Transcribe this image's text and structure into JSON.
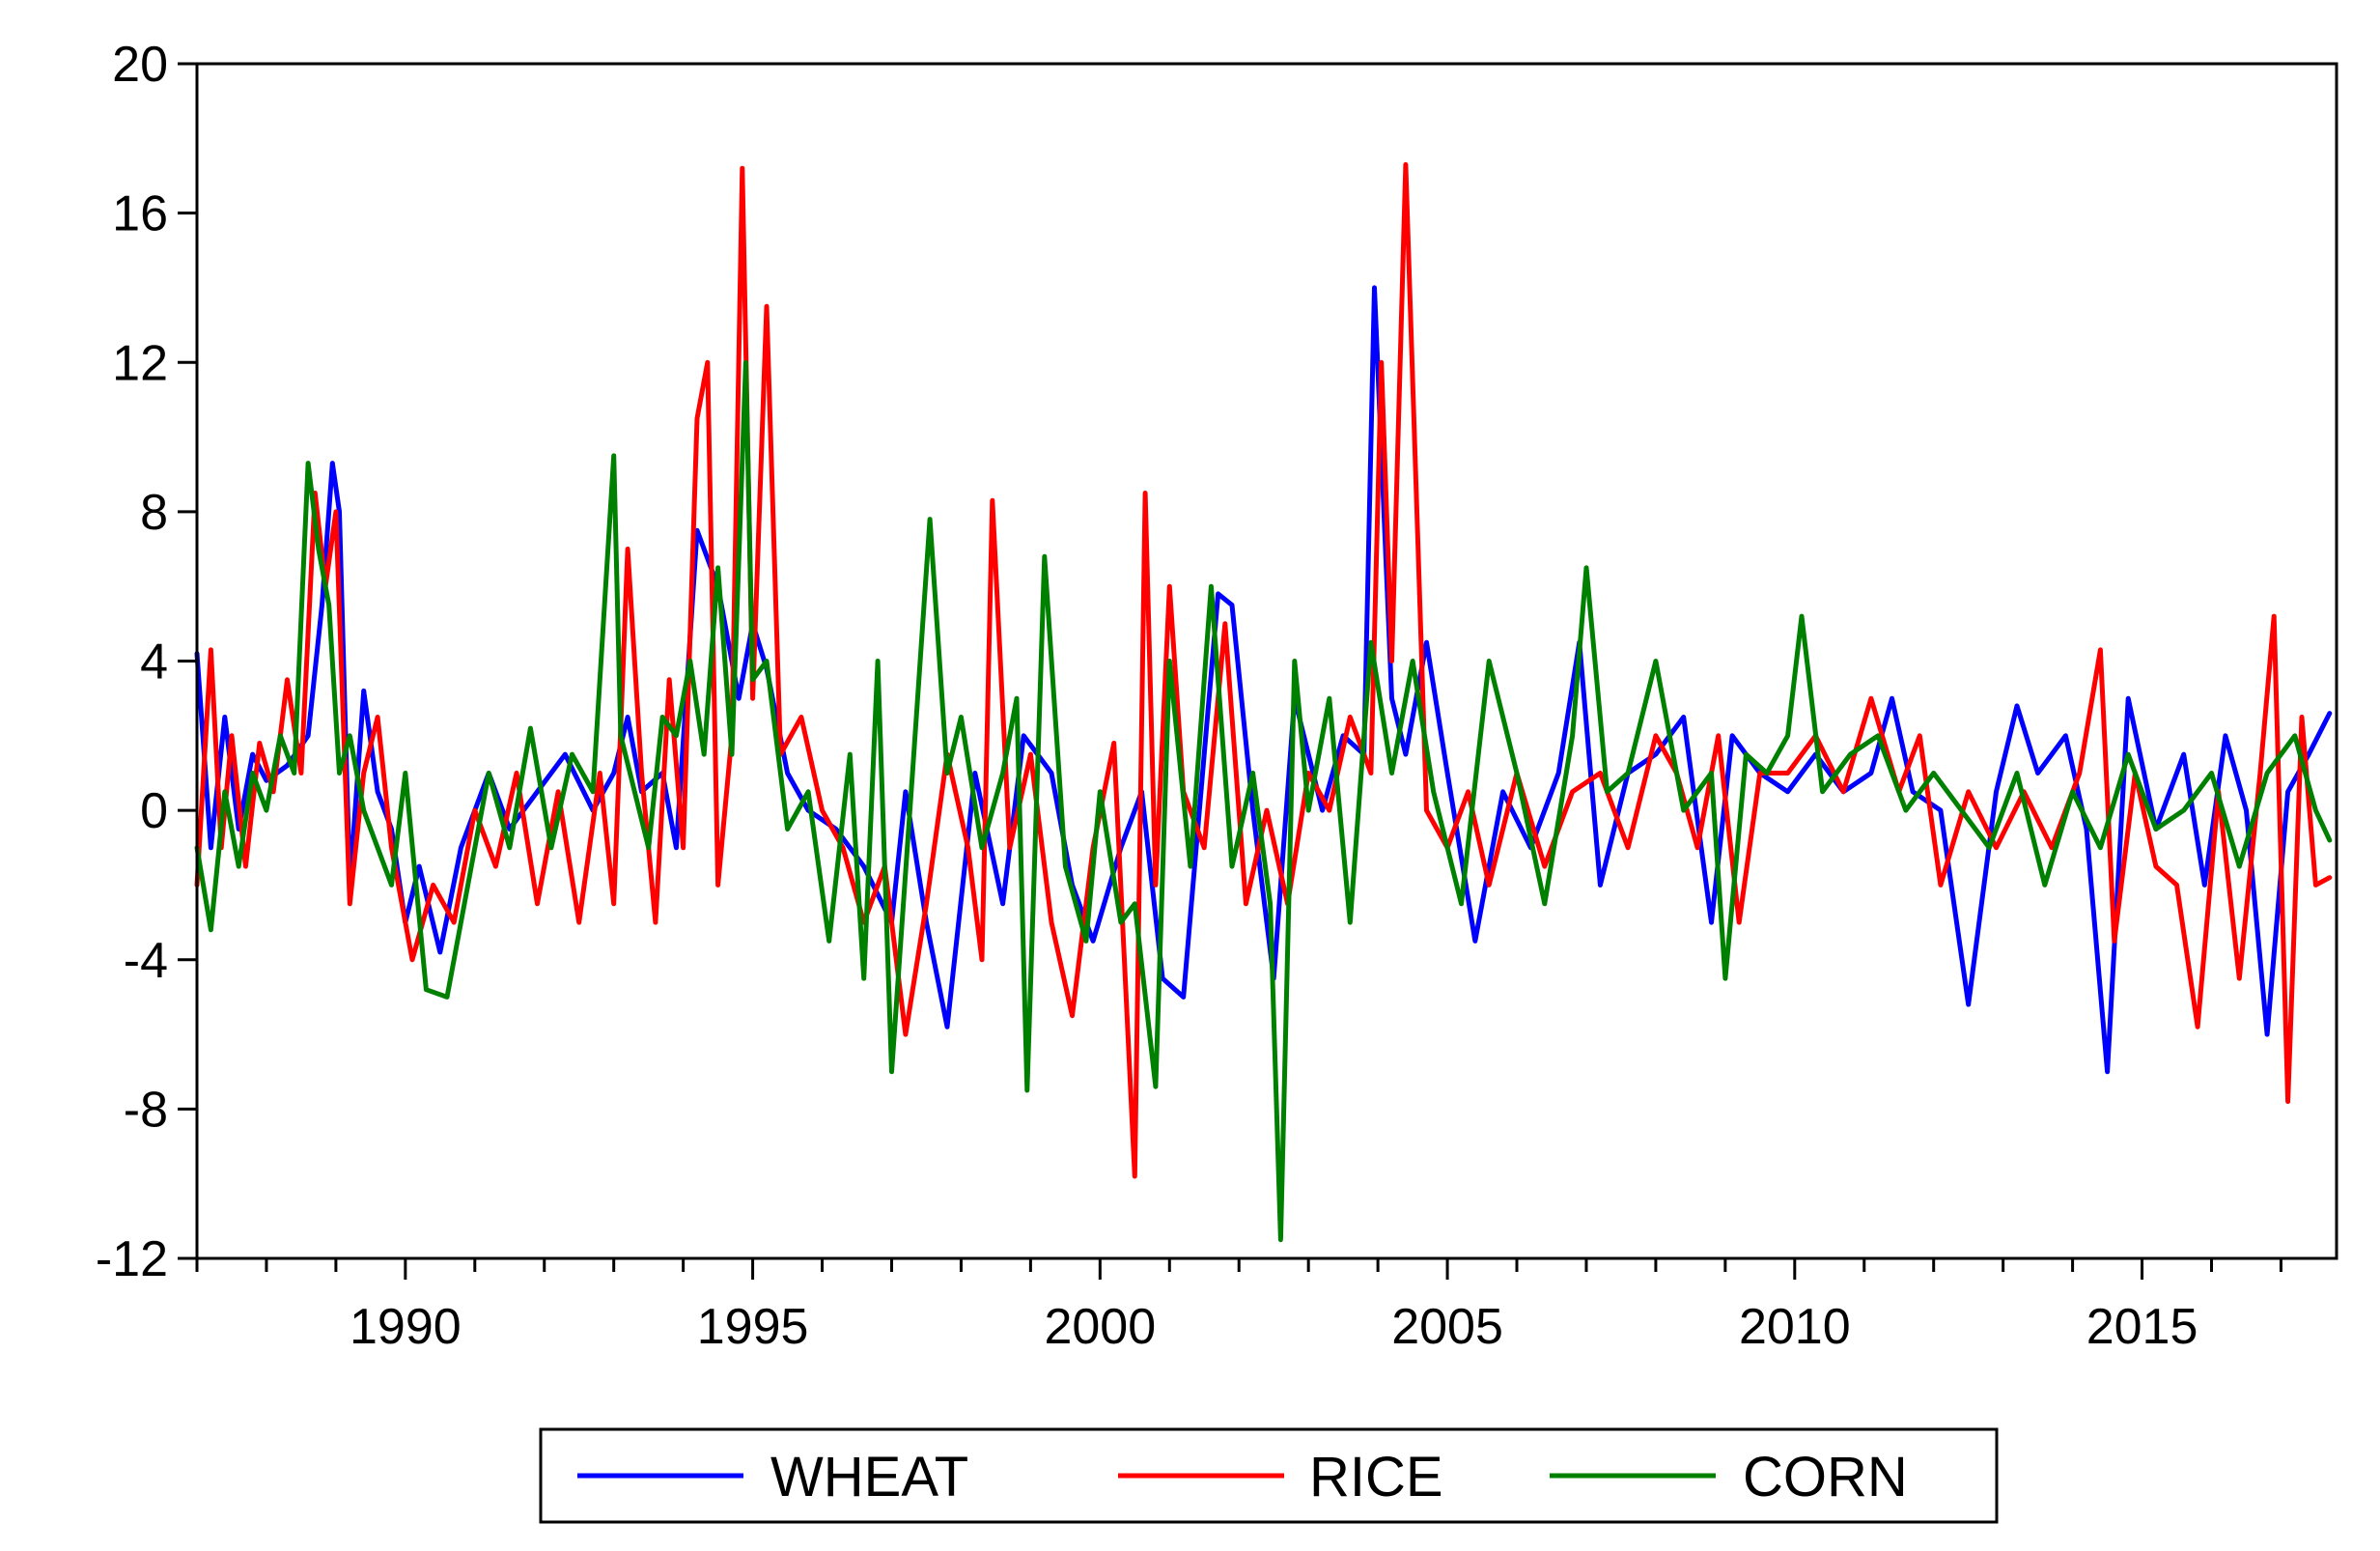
{
  "chart_data": {
    "type": "line",
    "title": "",
    "xlabel": "",
    "ylabel": "",
    "xlim": [
      1987.0,
      2017.8
    ],
    "ylim": [
      -12,
      20
    ],
    "yticks": [
      20,
      16,
      12,
      8,
      4,
      0,
      -4,
      -8,
      -12
    ],
    "ytick_labels": [
      "20",
      "16",
      "12",
      "8",
      "4",
      "0",
      "-4",
      "-8",
      "-12"
    ],
    "xticks": [
      1990,
      1995,
      2000,
      2005,
      2010,
      2015
    ],
    "xtick_labels": [
      "1990",
      "1995",
      "2000",
      "2005",
      "2010",
      "2015"
    ],
    "x_minor_ticks": "yearly",
    "grid": false,
    "legend_position": "bottom",
    "series": [
      {
        "name": "WHEAT",
        "color": "#0000FF",
        "x": [
          1987.0,
          1987.2,
          1987.4,
          1987.6,
          1987.8,
          1988.0,
          1988.3,
          1988.6,
          1988.8,
          1988.95,
          1989.05,
          1989.2,
          1989.4,
          1989.6,
          1989.8,
          1990.0,
          1990.2,
          1990.5,
          1990.8,
          1991.2,
          1991.5,
          1991.9,
          1992.3,
          1992.7,
          1993.0,
          1993.2,
          1993.4,
          1993.7,
          1993.9,
          1994.2,
          1994.5,
          1994.8,
          1995.0,
          1995.2,
          1995.5,
          1995.8,
          1996.2,
          1996.6,
          1997.0,
          1997.2,
          1997.5,
          1997.8,
          1998.2,
          1998.6,
          1998.9,
          1999.3,
          1999.6,
          1999.9,
          2000.3,
          2000.6,
          2000.9,
          2001.2,
          2001.5,
          2001.7,
          2001.9,
          2002.2,
          2002.5,
          2002.8,
          2003.2,
          2003.5,
          2003.8,
          2003.95,
          2004.2,
          2004.4,
          2004.7,
          2005.0,
          2005.4,
          2005.8,
          2006.2,
          2006.6,
          2006.9,
          2007.2,
          2007.6,
          2008.0,
          2008.4,
          2008.8,
          2009.1,
          2009.5,
          2009.9,
          2010.3,
          2010.7,
          2011.1,
          2011.4,
          2011.7,
          2012.1,
          2012.5,
          2012.9,
          2013.2,
          2013.5,
          2013.9,
          2014.2,
          2014.5,
          2014.8,
          2015.2,
          2015.6,
          2015.9,
          2016.2,
          2016.5,
          2016.8,
          2017.1,
          2017.4,
          2017.7
        ],
        "values": [
          4.2,
          -1.0,
          2.5,
          -0.5,
          1.5,
          0.8,
          1.2,
          2.0,
          5.5,
          9.3,
          8.0,
          -2.0,
          3.2,
          0.5,
          -0.5,
          -3.0,
          -1.5,
          -3.8,
          -1.0,
          1.0,
          -0.5,
          0.5,
          1.5,
          0.0,
          1.0,
          2.5,
          0.5,
          1.0,
          -1.0,
          7.5,
          6.0,
          3.0,
          5.0,
          3.8,
          1.0,
          0.0,
          -0.5,
          -1.5,
          -3.0,
          0.5,
          -3.0,
          -5.8,
          1.0,
          -2.5,
          2.0,
          1.0,
          -2.0,
          -3.5,
          -1.0,
          0.5,
          -4.5,
          -5.0,
          1.5,
          5.8,
          5.5,
          0.0,
          -4.5,
          3.0,
          0.0,
          2.0,
          1.5,
          14.0,
          3.0,
          1.5,
          4.5,
          1.0,
          -3.5,
          0.5,
          -1.0,
          1.0,
          4.5,
          -2.0,
          1.0,
          1.5,
          2.5,
          -3.0,
          2.0,
          1.0,
          0.5,
          1.5,
          0.5,
          1.0,
          3.0,
          0.5,
          0.0,
          -5.2,
          0.5,
          2.8,
          1.0,
          2.0,
          -0.5,
          -7.0,
          3.0,
          -0.5,
          1.5,
          -2.0,
          2.0,
          0.0,
          -6.0,
          0.5,
          1.5,
          2.6
        ]
      },
      {
        "name": "RICE",
        "color": "#FF0000",
        "x": [
          1987.0,
          1987.2,
          1987.35,
          1987.5,
          1987.7,
          1987.9,
          1988.1,
          1988.3,
          1988.5,
          1988.7,
          1988.85,
          1989.0,
          1989.2,
          1989.4,
          1989.6,
          1989.8,
          1990.1,
          1990.4,
          1990.7,
          1991.0,
          1991.3,
          1991.6,
          1991.9,
          1992.2,
          1992.5,
          1992.8,
          1993.0,
          1993.2,
          1993.4,
          1993.6,
          1993.8,
          1994.0,
          1994.2,
          1994.35,
          1994.5,
          1994.7,
          1994.85,
          1995.0,
          1995.2,
          1995.4,
          1995.7,
          1996.0,
          1996.3,
          1996.6,
          1996.9,
          1997.2,
          1997.5,
          1997.8,
          1998.1,
          1998.3,
          1998.45,
          1998.7,
          1999.0,
          1999.3,
          1999.6,
          1999.9,
          2000.2,
          2000.5,
          2000.65,
          2000.8,
          2001.0,
          2001.2,
          2001.5,
          2001.8,
          2002.1,
          2002.4,
          2002.7,
          2003.0,
          2003.3,
          2003.6,
          2003.9,
          2004.05,
          2004.2,
          2004.4,
          2004.7,
          2005.0,
          2005.3,
          2005.6,
          2006.0,
          2006.4,
          2006.8,
          2007.2,
          2007.6,
          2008.0,
          2008.3,
          2008.6,
          2008.9,
          2009.2,
          2009.5,
          2009.9,
          2010.3,
          2010.7,
          2011.1,
          2011.5,
          2011.8,
          2012.1,
          2012.5,
          2012.9,
          2013.3,
          2013.7,
          2014.1,
          2014.4,
          2014.6,
          2014.9,
          2015.2,
          2015.5,
          2015.8,
          2016.1,
          2016.4,
          2016.7,
          2016.9,
          2017.1,
          2017.3,
          2017.5,
          2017.7
        ],
        "values": [
          -2.0,
          4.3,
          -1.0,
          2.0,
          -1.5,
          1.8,
          0.5,
          3.5,
          1.0,
          8.5,
          6.0,
          8.0,
          -2.5,
          1.0,
          2.5,
          -1.0,
          -4.0,
          -2.0,
          -3.0,
          0.0,
          -1.5,
          1.0,
          -2.5,
          0.5,
          -3.0,
          1.0,
          -2.5,
          7.0,
          1.0,
          -3.0,
          3.5,
          -1.0,
          10.5,
          12.0,
          -2.0,
          2.0,
          17.2,
          3.0,
          13.5,
          1.5,
          2.5,
          0.0,
          -1.0,
          -3.0,
          -1.5,
          -6.0,
          -2.5,
          1.5,
          -1.0,
          -4.0,
          8.3,
          -1.0,
          1.5,
          -3.0,
          -5.5,
          -1.0,
          1.8,
          -9.8,
          8.5,
          -2.0,
          6.0,
          0.5,
          -1.0,
          5.0,
          -2.5,
          0.0,
          -2.5,
          1.0,
          0.0,
          2.5,
          1.0,
          12.0,
          4.0,
          17.3,
          0.0,
          -1.0,
          0.5,
          -2.0,
          1.0,
          -1.5,
          0.5,
          1.0,
          -1.0,
          2.0,
          1.0,
          -1.0,
          2.0,
          -3.0,
          1.0,
          1.0,
          2.0,
          0.5,
          3.0,
          0.5,
          2.0,
          -2.0,
          0.5,
          -1.0,
          0.5,
          -1.0,
          1.0,
          4.3,
          -3.5,
          1.0,
          -1.5,
          -2.0,
          -5.8,
          0.5,
          -4.5,
          1.0,
          5.2,
          -7.8,
          2.5,
          -2.0,
          -1.8
        ]
      },
      {
        "name": "CORN",
        "color": "#008000",
        "x": [
          1987.0,
          1987.2,
          1987.4,
          1987.6,
          1987.8,
          1988.0,
          1988.2,
          1988.4,
          1988.6,
          1988.75,
          1988.9,
          1989.05,
          1989.2,
          1989.4,
          1989.6,
          1989.8,
          1990.0,
          1990.3,
          1990.6,
          1990.9,
          1991.2,
          1991.5,
          1991.8,
          1992.1,
          1992.4,
          1992.7,
          1993.0,
          1993.1,
          1993.3,
          1993.5,
          1993.7,
          1993.9,
          1994.1,
          1994.3,
          1994.5,
          1994.7,
          1994.9,
          1995.0,
          1995.2,
          1995.5,
          1995.8,
          1996.1,
          1996.4,
          1996.6,
          1996.8,
          1997.0,
          1997.3,
          1997.55,
          1997.8,
          1998.0,
          1998.3,
          1998.6,
          1998.8,
          1998.95,
          1999.2,
          1999.5,
          1999.8,
          2000.0,
          2000.3,
          2000.5,
          2000.8,
          2001.0,
          2001.3,
          2001.6,
          2001.9,
          2002.2,
          2002.45,
          2002.6,
          2002.8,
          2003.0,
          2003.3,
          2003.6,
          2003.9,
          2004.2,
          2004.5,
          2004.8,
          2005.2,
          2005.6,
          2006.0,
          2006.4,
          2006.8,
          2007.0,
          2007.3,
          2007.6,
          2008.0,
          2008.4,
          2008.8,
          2009.0,
          2009.3,
          2009.6,
          2009.9,
          2010.1,
          2010.4,
          2010.8,
          2011.2,
          2011.6,
          2012.0,
          2012.4,
          2012.8,
          2013.2,
          2013.6,
          2014.0,
          2014.4,
          2014.8,
          2015.2,
          2015.6,
          2016.0,
          2016.4,
          2016.8,
          2017.2,
          2017.5,
          2017.7
        ],
        "values": [
          -1.0,
          -3.2,
          0.5,
          -1.5,
          1.0,
          0.0,
          2.0,
          1.0,
          9.3,
          7.0,
          5.5,
          1.0,
          2.0,
          0.0,
          -1.0,
          -2.0,
          1.0,
          -4.8,
          -5.0,
          -2.0,
          1.0,
          -1.0,
          2.2,
          -1.0,
          1.5,
          0.5,
          9.5,
          2.0,
          0.5,
          -1.0,
          2.5,
          2.0,
          4.0,
          1.5,
          6.5,
          1.5,
          12.0,
          3.5,
          4.0,
          -0.5,
          0.5,
          -3.5,
          1.5,
          -4.5,
          4.0,
          -7.0,
          1.0,
          7.8,
          1.0,
          2.5,
          -1.0,
          1.0,
          3.0,
          -7.5,
          6.8,
          -1.5,
          -3.5,
          0.5,
          -3.0,
          -2.5,
          -7.4,
          4.0,
          -1.5,
          6.0,
          -1.5,
          1.0,
          -2.5,
          -11.5,
          4.0,
          0.0,
          3.0,
          -3.0,
          4.5,
          1.0,
          4.0,
          0.5,
          -2.5,
          4.0,
          1.0,
          -2.5,
          2.0,
          6.5,
          0.5,
          1.0,
          4.0,
          0.0,
          1.0,
          -4.5,
          1.5,
          1.0,
          2.0,
          5.2,
          0.5,
          1.5,
          2.0,
          0.0,
          1.0,
          0.0,
          -1.0,
          1.0,
          -2.0,
          0.5,
          -1.0,
          1.5,
          -0.5,
          0.0,
          1.0,
          -1.5,
          1.0,
          2.0,
          0.0,
          -0.8
        ]
      }
    ]
  }
}
